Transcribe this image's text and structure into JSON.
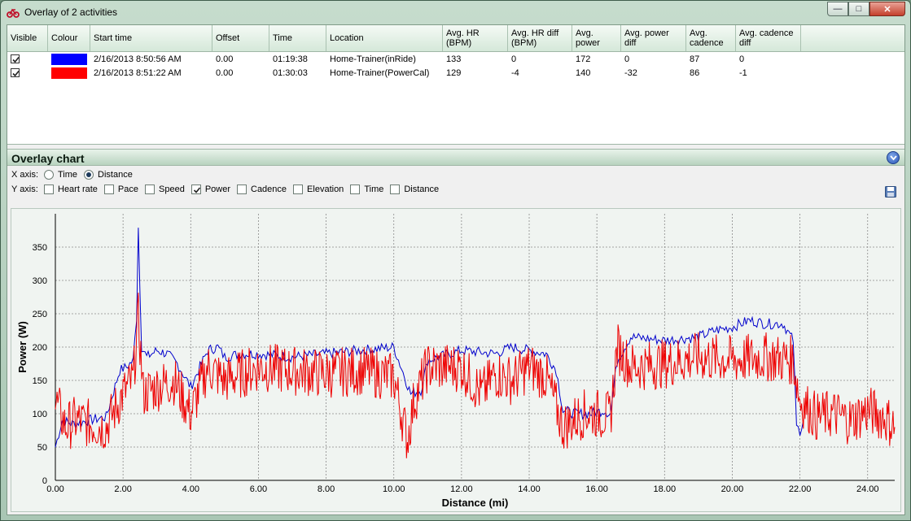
{
  "window": {
    "title": "Overlay of 2 activities"
  },
  "grid": {
    "columns": [
      "Visible",
      "Colour",
      "Start time",
      "Offset",
      "Time",
      "Location",
      "Avg. HR (BPM)",
      "Avg. HR diff (BPM)",
      "Avg. power",
      "Avg. power diff",
      "Avg. cadence",
      "Avg. cadence diff"
    ],
    "rows": [
      {
        "visible": true,
        "colour": "#0000ff",
        "start_time": "2/16/2013 8:50:56 AM",
        "offset": "0.00",
        "time": "01:19:38",
        "location": "Home-Trainer(inRide)",
        "avg_hr": "133",
        "avg_hr_diff": "0",
        "avg_power": "172",
        "avg_power_diff": "0",
        "avg_cadence": "87",
        "avg_cadence_diff": "0"
      },
      {
        "visible": true,
        "colour": "#ff0000",
        "start_time": "2/16/2013 8:51:22 AM",
        "offset": "0.00",
        "time": "01:30:03",
        "location": "Home-Trainer(PowerCal)",
        "avg_hr": "129",
        "avg_hr_diff": "-4",
        "avg_power": "140",
        "avg_power_diff": "-32",
        "avg_cadence": "86",
        "avg_cadence_diff": "-1"
      }
    ]
  },
  "panel": {
    "title": "Overlay chart",
    "x_axis_label": "X axis:",
    "y_axis_label": "Y axis:",
    "x_options": [
      {
        "label": "Time",
        "selected": false
      },
      {
        "label": "Distance",
        "selected": true
      }
    ],
    "y_options": [
      {
        "label": "Heart rate",
        "checked": false
      },
      {
        "label": "Pace",
        "checked": false
      },
      {
        "label": "Speed",
        "checked": false
      },
      {
        "label": "Power",
        "checked": true
      },
      {
        "label": "Cadence",
        "checked": false
      },
      {
        "label": "Elevation",
        "checked": false
      },
      {
        "label": "Time",
        "checked": false
      },
      {
        "label": "Distance",
        "checked": false
      }
    ]
  },
  "chart_data": {
    "type": "line",
    "xlabel": "Distance (mi)",
    "ylabel": "Power (W)",
    "xlim": [
      0,
      24.8
    ],
    "ylim": [
      0,
      400
    ],
    "xticks": [
      "0.00",
      "2.00",
      "4.00",
      "6.00",
      "8.00",
      "10.00",
      "12.00",
      "14.00",
      "16.00",
      "18.00",
      "20.00",
      "22.00",
      "24.00"
    ],
    "yticks": [
      "0",
      "50",
      "100",
      "150",
      "200",
      "250",
      "300",
      "350"
    ],
    "grid": true,
    "series": [
      {
        "color": "#0000cc",
        "x": [
          0,
          0.2,
          0.5,
          1.0,
          1.5,
          1.9,
          2.1,
          2.3,
          2.4,
          2.45,
          2.55,
          2.7,
          3.0,
          3.3,
          3.6,
          4.0,
          4.5,
          4.8,
          5.0,
          5.5,
          6.0,
          7.0,
          8.0,
          9.0,
          10.0,
          10.5,
          10.8,
          11.0,
          12.0,
          13.0,
          13.5,
          14.0,
          14.5,
          14.8,
          15.0,
          15.4,
          15.8,
          16.2,
          16.4,
          16.6,
          17.0,
          18.0,
          19.0,
          19.5,
          20.0,
          20.5,
          21.0,
          21.5,
          21.8,
          21.9,
          22.0,
          22.1
        ],
        "y": [
          50,
          90,
          85,
          90,
          95,
          165,
          170,
          180,
          245,
          380,
          200,
          185,
          195,
          190,
          175,
          140,
          195,
          200,
          185,
          190,
          190,
          185,
          190,
          195,
          200,
          130,
          135,
          180,
          195,
          190,
          200,
          195,
          190,
          165,
          105,
          100,
          100,
          105,
          100,
          180,
          215,
          210,
          215,
          225,
          230,
          240,
          235,
          235,
          210,
          80,
          75,
          90
        ]
      },
      {
        "color": "#ee0000",
        "x": [
          0,
          0.3,
          0.6,
          1.0,
          1.5,
          2.0,
          2.3,
          2.45,
          2.6,
          3.0,
          3.5,
          4.0,
          4.5,
          5.0,
          6.0,
          7.0,
          8.0,
          9.0,
          10.0,
          10.4,
          10.6,
          11.0,
          12.0,
          12.6,
          13.0,
          13.5,
          14.0,
          14.5,
          15.0,
          15.3,
          15.6,
          16.0,
          16.4,
          16.6,
          17.0,
          18.0,
          19.0,
          20.0,
          21.0,
          21.8,
          22.0,
          22.5,
          23.0,
          23.5,
          24.0,
          24.5,
          24.8
        ],
        "y": [
          120,
          80,
          90,
          85,
          80,
          130,
          150,
          245,
          130,
          140,
          150,
          100,
          170,
          150,
          170,
          165,
          160,
          165,
          155,
          60,
          120,
          170,
          170,
          130,
          160,
          150,
          170,
          155,
          80,
          90,
          100,
          100,
          95,
          200,
          170,
          175,
          185,
          180,
          185,
          180,
          120,
          95,
          100,
          90,
          105,
          95,
          80
        ]
      }
    ]
  }
}
